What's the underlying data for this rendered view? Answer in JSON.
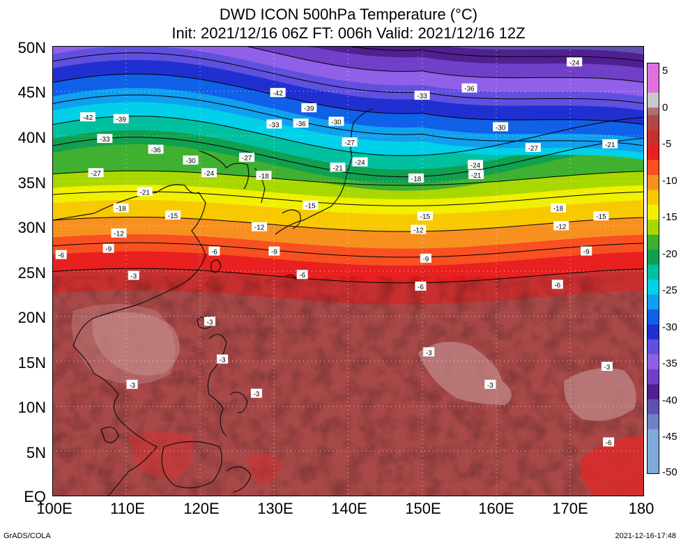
{
  "title_line1": "DWD ICON 500hPa Temperature (°C)",
  "title_line2": "Init: 2021/12/16 06Z  FT: 006h  Valid: 2021/12/16 12Z",
  "y_axis_labels": [
    "50N",
    "45N",
    "40N",
    "35N",
    "30N",
    "25N",
    "20N",
    "15N",
    "10N",
    "5N",
    "EQ"
  ],
  "x_axis_labels": [
    "100E",
    "110E",
    "120E",
    "130E",
    "140E",
    "150E",
    "160E",
    "170E",
    "180"
  ],
  "colorbar": {
    "labels": [
      "5",
      "0",
      "-5",
      "-10",
      "-15",
      "-20",
      "-25",
      "-30",
      "-35",
      "-40",
      "-45",
      "-50"
    ],
    "levels": [
      5,
      0,
      -5,
      -10,
      -15,
      -20,
      -25,
      -30,
      -35,
      -40,
      -45,
      -50
    ],
    "colors": [
      "#e070e0",
      "#c8c8c8",
      "#a05050",
      "#e83030",
      "#f87030",
      "#f8c000",
      "#c8e000",
      "#30a030",
      "#00b8b8",
      "#0060f0",
      "#8040d0",
      "#401080",
      "#6090d0",
      "#909090"
    ]
  },
  "map": {
    "lon_range": [
      100,
      180
    ],
    "lat_range": [
      0,
      50
    ],
    "contour_interval": 3,
    "contour_labels": [
      {
        "text": "-42",
        "lon": 104.8,
        "lat": 42.1
      },
      {
        "text": "-39",
        "lon": 109.3,
        "lat": 41.9
      },
      {
        "text": "-42",
        "lon": 130.5,
        "lat": 44.8
      },
      {
        "text": "-39",
        "lon": 134.7,
        "lat": 43.1
      },
      {
        "text": "-33",
        "lon": 130.0,
        "lat": 41.3
      },
      {
        "text": "-36",
        "lon": 133.6,
        "lat": 41.4
      },
      {
        "text": "-30",
        "lon": 138.4,
        "lat": 41.6
      },
      {
        "text": "-33",
        "lon": 150.0,
        "lat": 44.5
      },
      {
        "text": "-36",
        "lon": 156.4,
        "lat": 45.3
      },
      {
        "text": "-24",
        "lon": 170.6,
        "lat": 48.2
      },
      {
        "text": "-30",
        "lon": 160.6,
        "lat": 41.0
      },
      {
        "text": "-27",
        "lon": 165.0,
        "lat": 38.7
      },
      {
        "text": "-21",
        "lon": 175.4,
        "lat": 39.1
      },
      {
        "text": "-33",
        "lon": 107.1,
        "lat": 39.7
      },
      {
        "text": "-36",
        "lon": 114.0,
        "lat": 38.5
      },
      {
        "text": "-30",
        "lon": 118.7,
        "lat": 37.3
      },
      {
        "text": "-27",
        "lon": 126.3,
        "lat": 37.6
      },
      {
        "text": "-27",
        "lon": 140.2,
        "lat": 39.3
      },
      {
        "text": "-24",
        "lon": 141.6,
        "lat": 37.1
      },
      {
        "text": "-24",
        "lon": 157.2,
        "lat": 36.8
      },
      {
        "text": "-27",
        "lon": 105.9,
        "lat": 35.9
      },
      {
        "text": "-24",
        "lon": 121.2,
        "lat": 35.9
      },
      {
        "text": "-18",
        "lon": 128.6,
        "lat": 35.6
      },
      {
        "text": "-21",
        "lon": 138.6,
        "lat": 36.5
      },
      {
        "text": "-18",
        "lon": 149.2,
        "lat": 35.3
      },
      {
        "text": "-21",
        "lon": 157.3,
        "lat": 35.7
      },
      {
        "text": "-21",
        "lon": 112.5,
        "lat": 33.8
      },
      {
        "text": "-18",
        "lon": 109.3,
        "lat": 32.0
      },
      {
        "text": "-15",
        "lon": 134.9,
        "lat": 32.3
      },
      {
        "text": "-15",
        "lon": 116.3,
        "lat": 31.2
      },
      {
        "text": "-18",
        "lon": 168.4,
        "lat": 32.0
      },
      {
        "text": "-15",
        "lon": 174.2,
        "lat": 31.1
      },
      {
        "text": "-15",
        "lon": 150.4,
        "lat": 31.1
      },
      {
        "text": "-12",
        "lon": 109.0,
        "lat": 29.2
      },
      {
        "text": "-12",
        "lon": 128.0,
        "lat": 29.9
      },
      {
        "text": "-12",
        "lon": 149.5,
        "lat": 29.6
      },
      {
        "text": "-12",
        "lon": 168.8,
        "lat": 30.0
      },
      {
        "text": "-9",
        "lon": 107.6,
        "lat": 27.5
      },
      {
        "text": "-6",
        "lon": 101.2,
        "lat": 26.8
      },
      {
        "text": "-6",
        "lon": 121.9,
        "lat": 27.2
      },
      {
        "text": "-9",
        "lon": 130.0,
        "lat": 27.2
      },
      {
        "text": "-9",
        "lon": 150.5,
        "lat": 26.4
      },
      {
        "text": "-9",
        "lon": 172.2,
        "lat": 27.2
      },
      {
        "text": "-3",
        "lon": 111.0,
        "lat": 24.5
      },
      {
        "text": "-6",
        "lon": 133.8,
        "lat": 24.6
      },
      {
        "text": "-6",
        "lon": 149.8,
        "lat": 23.3
      },
      {
        "text": "-6",
        "lon": 168.3,
        "lat": 23.5
      },
      {
        "text": "-3",
        "lon": 121.3,
        "lat": 19.4
      },
      {
        "text": "-3",
        "lon": 123.0,
        "lat": 15.2
      },
      {
        "text": "-3",
        "lon": 150.9,
        "lat": 16.0
      },
      {
        "text": "-3",
        "lon": 110.8,
        "lat": 12.4
      },
      {
        "text": "-3",
        "lon": 159.2,
        "lat": 12.4
      },
      {
        "text": "-3",
        "lon": 127.6,
        "lat": 11.4
      },
      {
        "text": "-3",
        "lon": 175.0,
        "lat": 14.4
      },
      {
        "text": "-6",
        "lon": 175.2,
        "lat": 6.0
      }
    ]
  },
  "footer_left": "GrADS/COLA",
  "footer_right": "2021-12-16-17:48"
}
